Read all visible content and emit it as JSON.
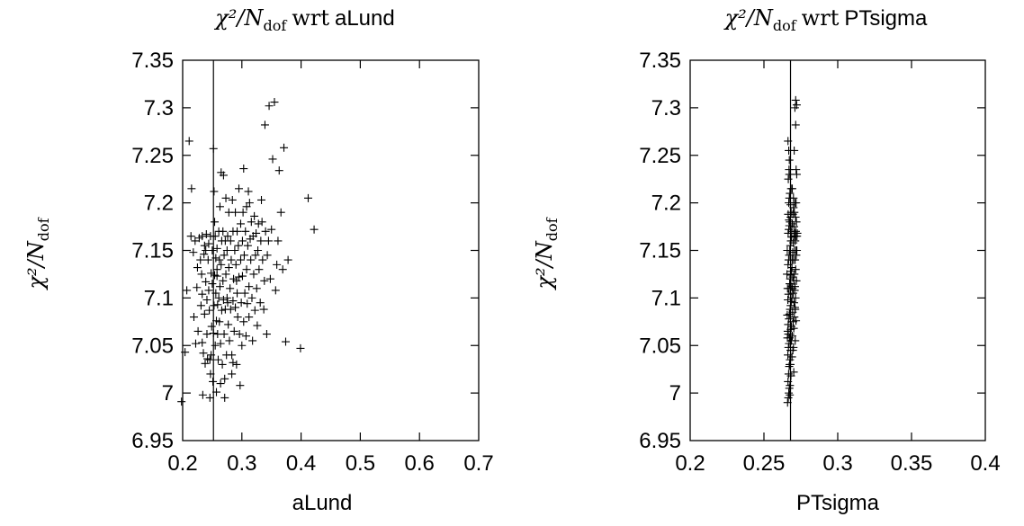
{
  "chart_data": [
    {
      "type": "scatter",
      "title_math": "χ²/N",
      "title_sub": "dof",
      "title_wrt": "wrt",
      "title_param": "aLund",
      "xlabel": "aLund",
      "ylabel_math": "χ²/N",
      "ylabel_sub": "dof",
      "xlim": [
        0.2,
        0.7
      ],
      "ylim": [
        6.95,
        7.35
      ],
      "xticks": [
        "0.2",
        "0.3",
        "0.4",
        "0.5",
        "0.6",
        "0.7"
      ],
      "yticks": [
        "6.95",
        "7",
        "7.05",
        "7.1",
        "7.15",
        "7.2",
        "7.25",
        "7.3",
        "7.35"
      ],
      "vline_x": 0.252,
      "marker": "plus",
      "points": [
        [
          0.198,
          6.991
        ],
        [
          0.204,
          7.043
        ],
        [
          0.207,
          7.108
        ],
        [
          0.211,
          7.265
        ],
        [
          0.214,
          7.165
        ],
        [
          0.215,
          7.215
        ],
        [
          0.218,
          7.148
        ],
        [
          0.219,
          7.08
        ],
        [
          0.221,
          7.16
        ],
        [
          0.222,
          7.052
        ],
        [
          0.224,
          7.111
        ],
        [
          0.225,
          7.132
        ],
        [
          0.226,
          7.065
        ],
        [
          0.228,
          7.163
        ],
        [
          0.23,
          7.14
        ],
        [
          0.231,
          7.092
        ],
        [
          0.232,
          7.125
        ],
        [
          0.233,
          7.104
        ],
        [
          0.233,
          7.053
        ],
        [
          0.234,
          6.998
        ],
        [
          0.235,
          7.042
        ],
        [
          0.236,
          7.146
        ],
        [
          0.237,
          7.155
        ],
        [
          0.237,
          7.083
        ],
        [
          0.238,
          7.031
        ],
        [
          0.239,
          7.117
        ],
        [
          0.24,
          7.167
        ],
        [
          0.241,
          7.062
        ],
        [
          0.241,
          7.098
        ],
        [
          0.242,
          7.036
        ],
        [
          0.243,
          7.14
        ],
        [
          0.244,
          7.108
        ],
        [
          0.244,
          7.157
        ],
        [
          0.245,
          7.087
        ],
        [
          0.246,
          7.035
        ],
        [
          0.246,
          6.995
        ],
        [
          0.247,
          7.165
        ],
        [
          0.248,
          7.126
        ],
        [
          0.248,
          7.04
        ],
        [
          0.249,
          7.07
        ],
        [
          0.25,
          7.115
        ],
        [
          0.25,
          7.15
        ],
        [
          0.251,
          7.012
        ],
        [
          0.252,
          7.063
        ],
        [
          0.252,
          7.257
        ],
        [
          0.253,
          7.212
        ],
        [
          0.253,
          7.092
        ],
        [
          0.254,
          7.18
        ],
        [
          0.254,
          7.124
        ],
        [
          0.255,
          7.165
        ],
        [
          0.255,
          7.05
        ],
        [
          0.256,
          7.142
        ],
        [
          0.256,
          7.105
        ],
        [
          0.257,
          7.076
        ],
        [
          0.257,
          7.001
        ],
        [
          0.258,
          7.152
        ],
        [
          0.258,
          7.123
        ],
        [
          0.259,
          7.093
        ],
        [
          0.259,
          7.062
        ],
        [
          0.26,
          7.035
        ],
        [
          0.261,
          7.17
        ],
        [
          0.261,
          7.1
        ],
        [
          0.262,
          7.14
        ],
        [
          0.262,
          7.075
        ],
        [
          0.263,
          7.112
        ],
        [
          0.263,
          7.196
        ],
        [
          0.264,
          7.052
        ],
        [
          0.265,
          7.232
        ],
        [
          0.265,
          7.135
        ],
        [
          0.266,
          7.16
        ],
        [
          0.266,
          7.087
        ],
        [
          0.267,
          7.03
        ],
        [
          0.268,
          7.118
        ],
        [
          0.268,
          7.17
        ],
        [
          0.269,
          7.229
        ],
        [
          0.269,
          7.098
        ],
        [
          0.27,
          7.145
        ],
        [
          0.27,
          7.062
        ],
        [
          0.271,
          7.015
        ],
        [
          0.272,
          7.16
        ],
        [
          0.272,
          7.088
        ],
        [
          0.273,
          7.125
        ],
        [
          0.273,
          7.205
        ],
        [
          0.274,
          7.04
        ],
        [
          0.275,
          7.15
        ],
        [
          0.275,
          7.1
        ],
        [
          0.276,
          7.165
        ],
        [
          0.277,
          7.072
        ],
        [
          0.278,
          7.132
        ],
        [
          0.278,
          7.19
        ],
        [
          0.279,
          7.055
        ],
        [
          0.28,
          7.11
        ],
        [
          0.281,
          7.16
        ],
        [
          0.281,
          7.088
        ],
        [
          0.282,
          7.14
        ],
        [
          0.283,
          7.04
        ],
        [
          0.283,
          7.02
        ],
        [
          0.284,
          7.203
        ],
        [
          0.285,
          7.17
        ],
        [
          0.285,
          7.097
        ],
        [
          0.286,
          7.12
        ],
        [
          0.287,
          7.065
        ],
        [
          0.288,
          7.15
        ],
        [
          0.289,
          7.19
        ],
        [
          0.289,
          7.09
        ],
        [
          0.29,
          7.135
        ],
        [
          0.291,
          7.03
        ],
        [
          0.292,
          7.17
        ],
        [
          0.292,
          7.105
        ],
        [
          0.293,
          7.08
        ],
        [
          0.294,
          7.155
        ],
        [
          0.295,
          7.215
        ],
        [
          0.295,
          7.122
        ],
        [
          0.296,
          7.062
        ],
        [
          0.297,
          7.008
        ],
        [
          0.298,
          7.178
        ],
        [
          0.298,
          7.14
        ],
        [
          0.299,
          7.095
        ],
        [
          0.3,
          7.05
        ],
        [
          0.301,
          7.16
        ],
        [
          0.301,
          7.123
        ],
        [
          0.302,
          7.19
        ],
        [
          0.303,
          7.075
        ],
        [
          0.303,
          7.236
        ],
        [
          0.304,
          7.145
        ],
        [
          0.305,
          7.105
        ],
        [
          0.306,
          7.17
        ],
        [
          0.307,
          7.06
        ],
        [
          0.308,
          7.196
        ],
        [
          0.308,
          7.13
        ],
        [
          0.309,
          7.094
        ],
        [
          0.31,
          7.155
        ],
        [
          0.311,
          7.212
        ],
        [
          0.312,
          7.112
        ],
        [
          0.312,
          7.08
        ],
        [
          0.313,
          7.2
        ],
        [
          0.314,
          7.162
        ],
        [
          0.315,
          7.14
        ],
        [
          0.316,
          7.18
        ],
        [
          0.317,
          7.1
        ],
        [
          0.318,
          7.055
        ],
        [
          0.319,
          7.165
        ],
        [
          0.32,
          7.125
        ],
        [
          0.321,
          7.186
        ],
        [
          0.322,
          7.087
        ],
        [
          0.323,
          7.145
        ],
        [
          0.324,
          7.168
        ],
        [
          0.325,
          7.11
        ],
        [
          0.326,
          7.071
        ],
        [
          0.327,
          7.15
        ],
        [
          0.328,
          7.178
        ],
        [
          0.329,
          7.13
        ],
        [
          0.331,
          7.095
        ],
        [
          0.332,
          7.16
        ],
        [
          0.333,
          7.203
        ],
        [
          0.334,
          7.18
        ],
        [
          0.335,
          7.14
        ],
        [
          0.337,
          7.088
        ],
        [
          0.338,
          7.118
        ],
        [
          0.339,
          7.282
        ],
        [
          0.34,
          7.17
        ],
        [
          0.342,
          7.062
        ],
        [
          0.343,
          7.145
        ],
        [
          0.345,
          7.16
        ],
        [
          0.346,
          7.302
        ],
        [
          0.348,
          7.12
        ],
        [
          0.35,
          7.172
        ],
        [
          0.352,
          7.246
        ],
        [
          0.355,
          7.306
        ],
        [
          0.357,
          7.108
        ],
        [
          0.359,
          7.135
        ],
        [
          0.361,
          7.16
        ],
        [
          0.363,
          7.234
        ],
        [
          0.366,
          7.19
        ],
        [
          0.369,
          7.13
        ],
        [
          0.371,
          7.258
        ],
        [
          0.374,
          7.054
        ],
        [
          0.378,
          7.14
        ],
        [
          0.399,
          7.047
        ],
        [
          0.412,
          7.205
        ],
        [
          0.422,
          7.172
        ],
        [
          0.233,
          7.165
        ],
        [
          0.239,
          7.15
        ],
        [
          0.258,
          7.13
        ],
        [
          0.276,
          7.095
        ],
        [
          0.291,
          7.118
        ],
        [
          0.285,
          7.032
        ],
        [
          0.264,
          7.01
        ],
        [
          0.271,
          6.995
        ],
        [
          0.247,
          7.02
        ]
      ]
    },
    {
      "type": "scatter",
      "title_math": "χ²/N",
      "title_sub": "dof",
      "title_wrt": "wrt",
      "title_param": "PTsigma",
      "xlabel": "PTsigma",
      "ylabel_math": "χ²/N",
      "ylabel_sub": "dof",
      "xlim": [
        0.2,
        0.4
      ],
      "ylim": [
        6.95,
        7.35
      ],
      "xticks": [
        "0.2",
        "0.25",
        "0.3",
        "0.35",
        "0.4"
      ],
      "yticks": [
        "6.95",
        "7",
        "7.05",
        "7.1",
        "7.15",
        "7.2",
        "7.25",
        "7.3",
        "7.35"
      ],
      "vline_x": 0.268,
      "marker": "plus",
      "points": [
        [
          0.266,
          6.99
        ],
        [
          0.2665,
          6.995
        ],
        [
          0.2668,
          7.0
        ],
        [
          0.2672,
          7.005
        ],
        [
          0.2675,
          6.998
        ],
        [
          0.2663,
          7.012
        ],
        [
          0.2667,
          7.02
        ],
        [
          0.2671,
          7.028
        ],
        [
          0.2676,
          7.035
        ],
        [
          0.268,
          7.03
        ],
        [
          0.2662,
          7.04
        ],
        [
          0.2666,
          7.048
        ],
        [
          0.267,
          7.052
        ],
        [
          0.2674,
          7.058
        ],
        [
          0.2678,
          7.062
        ],
        [
          0.2682,
          7.067
        ],
        [
          0.2686,
          7.07
        ],
        [
          0.2661,
          7.065
        ],
        [
          0.2664,
          7.072
        ],
        [
          0.2669,
          7.078
        ],
        [
          0.2673,
          7.083
        ],
        [
          0.2677,
          7.088
        ],
        [
          0.2681,
          7.092
        ],
        [
          0.2685,
          7.096
        ],
        [
          0.269,
          7.1
        ],
        [
          0.2694,
          7.085
        ],
        [
          0.2698,
          7.075
        ],
        [
          0.2702,
          7.068
        ],
        [
          0.2706,
          7.08
        ],
        [
          0.271,
          7.09
        ],
        [
          0.2662,
          7.098
        ],
        [
          0.2666,
          7.104
        ],
        [
          0.267,
          7.11
        ],
        [
          0.2674,
          7.115
        ],
        [
          0.2678,
          7.12
        ],
        [
          0.2682,
          7.124
        ],
        [
          0.2686,
          7.128
        ],
        [
          0.269,
          7.132
        ],
        [
          0.2694,
          7.11
        ],
        [
          0.2698,
          7.105
        ],
        [
          0.2702,
          7.118
        ],
        [
          0.2706,
          7.125
        ],
        [
          0.271,
          7.112
        ],
        [
          0.2714,
          7.1
        ],
        [
          0.2663,
          7.135
        ],
        [
          0.2667,
          7.14
        ],
        [
          0.2671,
          7.145
        ],
        [
          0.2675,
          7.15
        ],
        [
          0.2679,
          7.155
        ],
        [
          0.2683,
          7.16
        ],
        [
          0.2687,
          7.164
        ],
        [
          0.2691,
          7.14
        ],
        [
          0.2695,
          7.148
        ],
        [
          0.2699,
          7.158
        ],
        [
          0.2703,
          7.165
        ],
        [
          0.2707,
          7.15
        ],
        [
          0.2711,
          7.14
        ],
        [
          0.2715,
          7.13
        ],
        [
          0.2719,
          7.145
        ],
        [
          0.2664,
          7.168
        ],
        [
          0.2668,
          7.172
        ],
        [
          0.2672,
          7.176
        ],
        [
          0.2676,
          7.18
        ],
        [
          0.268,
          7.185
        ],
        [
          0.2684,
          7.19
        ],
        [
          0.2688,
          7.17
        ],
        [
          0.2692,
          7.178
        ],
        [
          0.2696,
          7.188
        ],
        [
          0.27,
          7.195
        ],
        [
          0.2704,
          7.175
        ],
        [
          0.2708,
          7.168
        ],
        [
          0.2712,
          7.16
        ],
        [
          0.2716,
          7.17
        ],
        [
          0.272,
          7.18
        ],
        [
          0.2724,
          7.165
        ],
        [
          0.2668,
          7.2
        ],
        [
          0.2672,
          7.205
        ],
        [
          0.2676,
          7.21
        ],
        [
          0.268,
          7.198
        ],
        [
          0.2684,
          7.215
        ],
        [
          0.27,
          7.205
        ],
        [
          0.271,
          7.2
        ],
        [
          0.2665,
          7.225
        ],
        [
          0.267,
          7.235
        ],
        [
          0.2672,
          7.245
        ],
        [
          0.2663,
          7.265
        ],
        [
          0.2668,
          7.255
        ],
        [
          0.2672,
          7.23
        ],
        [
          0.2718,
          7.235
        ],
        [
          0.2722,
          7.23
        ],
        [
          0.2715,
          7.282
        ],
        [
          0.271,
          7.3
        ],
        [
          0.2715,
          7.308
        ],
        [
          0.2722,
          7.303
        ],
        [
          0.2705,
          7.255
        ],
        [
          0.2692,
          7.215
        ],
        [
          0.2718,
          7.2
        ],
        [
          0.266,
          7.11
        ],
        [
          0.2665,
          7.062
        ],
        [
          0.27,
          7.048
        ],
        [
          0.2676,
          7.008
        ],
        [
          0.2683,
          7.018
        ],
        [
          0.269,
          7.038
        ],
        [
          0.2658,
          7.082
        ],
        [
          0.2712,
          7.055
        ],
        [
          0.2717,
          7.076
        ],
        [
          0.272,
          7.118
        ],
        [
          0.2723,
          7.15
        ],
        [
          0.2726,
          7.168
        ],
        [
          0.2658,
          7.15
        ],
        [
          0.2656,
          7.125
        ],
        [
          0.2659,
          7.058
        ],
        [
          0.2688,
          7.112
        ],
        [
          0.2692,
          7.06
        ],
        [
          0.2696,
          7.122
        ],
        [
          0.27,
          7.14
        ],
        [
          0.2704,
          7.095
        ],
        [
          0.2708,
          7.108
        ],
        [
          0.2712,
          7.088
        ],
        [
          0.2716,
          7.165
        ],
        [
          0.2664,
          7.188
        ],
        [
          0.267,
          7.182
        ],
        [
          0.2706,
          7.19
        ],
        [
          0.2714,
          7.185
        ],
        [
          0.2718,
          7.15
        ],
        [
          0.2674,
          7.03
        ],
        [
          0.268,
          7.045
        ],
        [
          0.2686,
          7.055
        ],
        [
          0.2696,
          7.045
        ],
        [
          0.2702,
          7.022
        ]
      ]
    }
  ]
}
